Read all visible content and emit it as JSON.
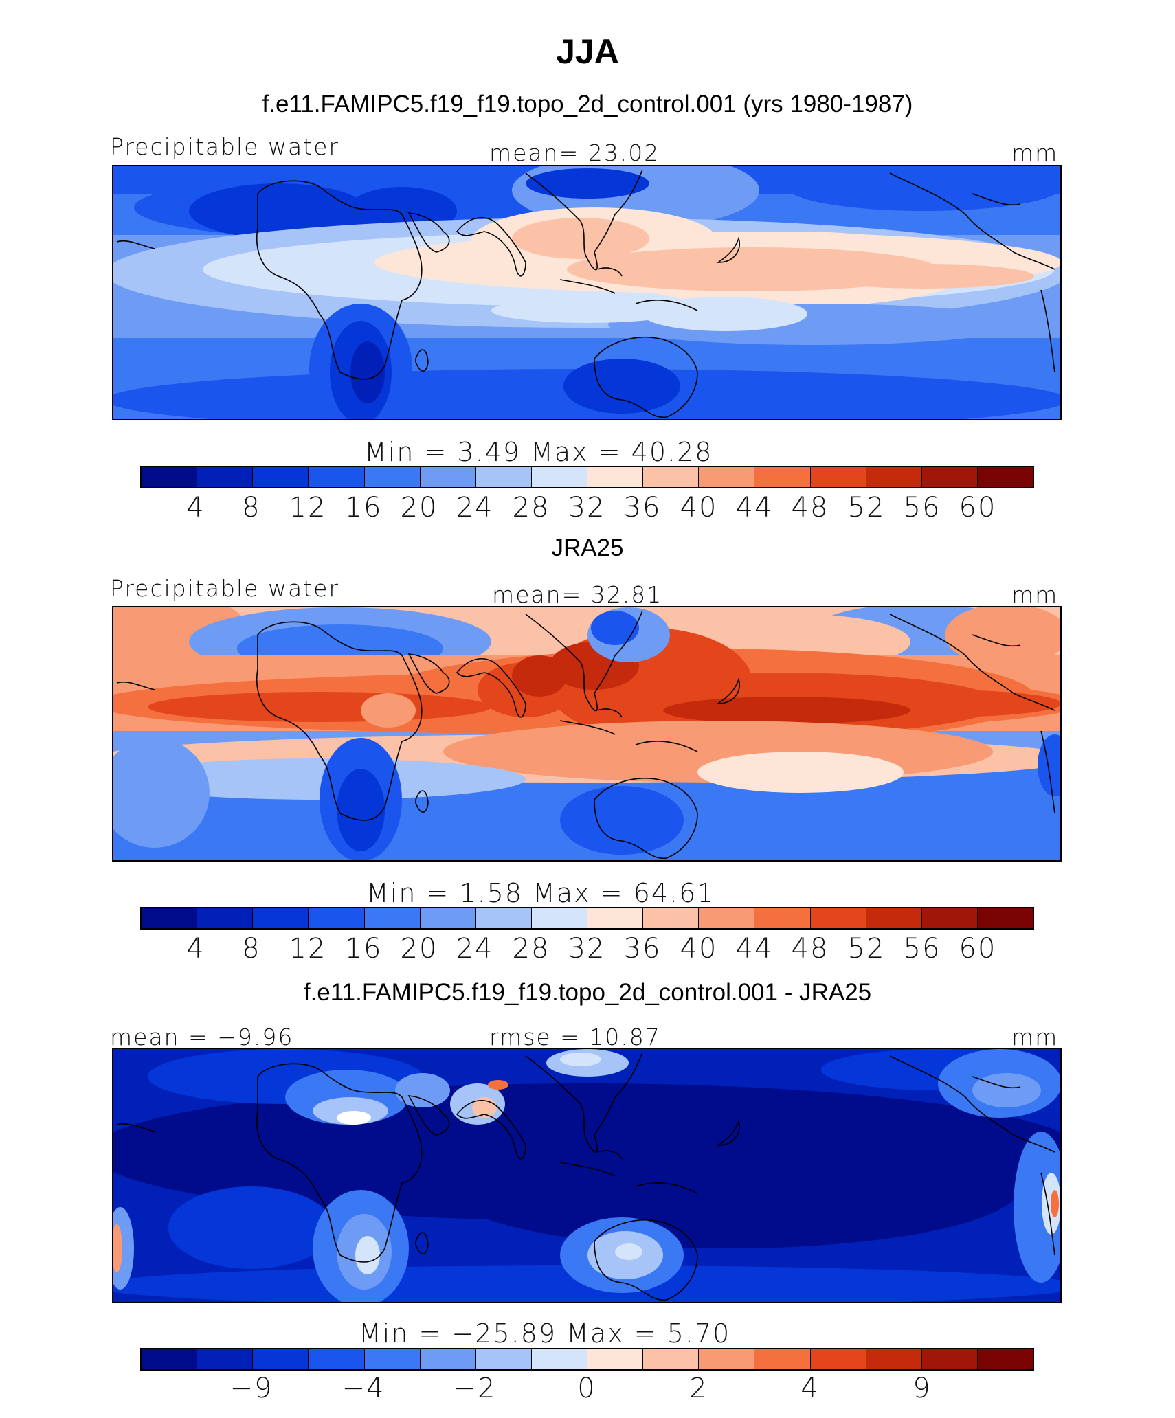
{
  "figure": {
    "title": "JJA"
  },
  "panels": [
    {
      "title": "f.e11.FAMIPC5.f19_f19.topo_2d_control.001 (yrs 1980-1987)",
      "left_label": "Precipitable water",
      "center_label": "mean=   23.02",
      "right_label": "mm",
      "minmax": "Min  =     3.49  Max  =    40.28",
      "colorbar_ticks": [
        "4",
        "8",
        "12",
        "16",
        "20",
        "24",
        "28",
        "32",
        "36",
        "40",
        "44",
        "48",
        "52",
        "56",
        "60"
      ],
      "field": "model"
    },
    {
      "title": "JRA25",
      "left_label": "Precipitable water",
      "center_label": "mean=   32.81",
      "right_label": "mm",
      "minmax": "Min  =     1.58  Max  =    64.61",
      "colorbar_ticks": [
        "4",
        "8",
        "12",
        "16",
        "20",
        "24",
        "28",
        "32",
        "36",
        "40",
        "44",
        "48",
        "52",
        "56",
        "60"
      ],
      "field": "reanalysis"
    },
    {
      "title": "f.e11.FAMIPC5.f19_f19.topo_2d_control.001 - JRA25",
      "left_label": "mean =   −9.96",
      "center_label": "rmse =   10.87",
      "right_label": "mm",
      "minmax": "Min  =  −25.89  Max  =     5.70",
      "colorbar_ticks": [
        "−9",
        "−4",
        "−2",
        "0",
        "2",
        "4",
        "9"
      ],
      "field": "difference"
    }
  ],
  "colorbar_colors": [
    "#000c8b",
    "#0020b8",
    "#0537d8",
    "#1a55ee",
    "#3a78f4",
    "#6e9cf5",
    "#a6c4f8",
    "#d4e4fb",
    "#fde6d8",
    "#fbc2a8",
    "#f89a73",
    "#f4703f",
    "#e4461c",
    "#c52a0c",
    "#a01608",
    "#7a0303"
  ],
  "map_extent": {
    "lon": [
      -30,
      270
    ],
    "lat": [
      -45,
      45
    ]
  }
}
